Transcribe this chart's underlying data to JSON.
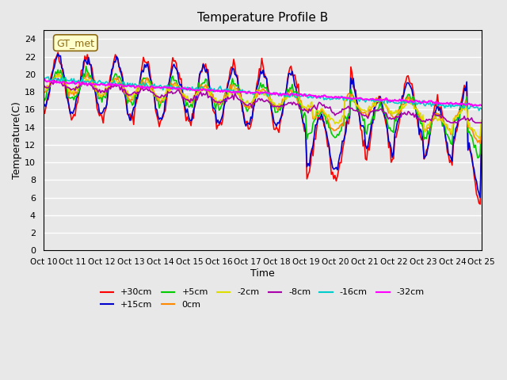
{
  "title": "Temperature Profile B",
  "xlabel": "Time",
  "ylabel": "Temperature(C)",
  "ylim": [
    0,
    25
  ],
  "yticks": [
    0,
    2,
    4,
    6,
    8,
    10,
    12,
    14,
    16,
    18,
    20,
    22,
    24
  ],
  "xtick_labels": [
    "Oct 10",
    "Oct 11",
    "Oct 12",
    "Oct 13",
    "Oct 14",
    "Oct 15",
    "Oct 16",
    "Oct 17",
    "Oct 18",
    "Oct 19",
    "Oct 20",
    "Oct 21",
    "Oct 22",
    "Oct 23",
    "Oct 24",
    "Oct 25"
  ],
  "background_color": "#e8e8e8",
  "gt_met_label": "GT_met",
  "series_colors": {
    "+30cm": "#ff0000",
    "+15cm": "#0000cc",
    "+5cm": "#00cc00",
    "0cm": "#ff8800",
    "-2cm": "#dddd00",
    "-8cm": "#aa00aa",
    "-16cm": "#00cccc",
    "-32cm": "#ff00ff"
  },
  "legend_order": [
    "+30cm",
    "+15cm",
    "+5cm",
    "0cm",
    "-2cm",
    "-8cm",
    "-16cm",
    "-32cm"
  ]
}
